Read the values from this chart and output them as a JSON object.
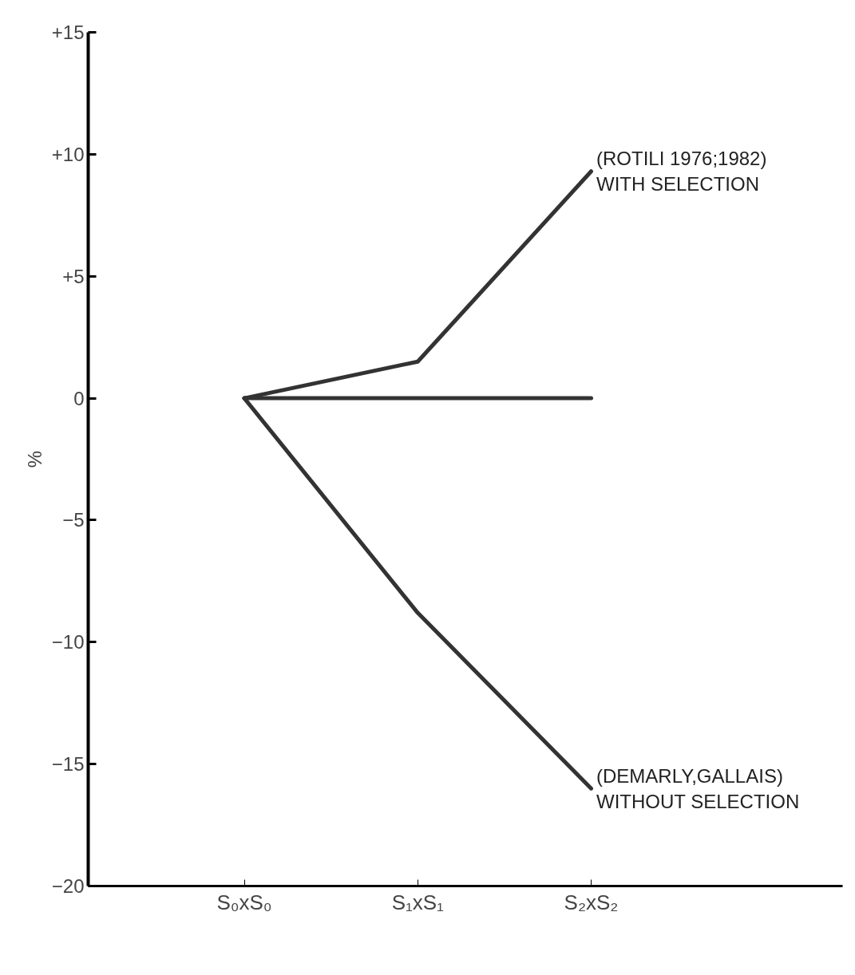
{
  "chart_data": {
    "type": "line",
    "ylabel": "%",
    "categories": [
      "S₀xS₀",
      "S₁xS₁",
      "S₂xS₂"
    ],
    "series": [
      {
        "color": "#333333",
        "values": [
          0,
          1.5,
          9.3
        ]
      },
      {
        "color": "#333333",
        "values": [
          0,
          0,
          0
        ]
      },
      {
        "color": "#333333",
        "values": [
          0,
          -8.8,
          -16
        ]
      }
    ],
    "ylim": [
      -20,
      15
    ],
    "yticks": [
      {
        "value": 15,
        "label": "+15"
      },
      {
        "value": 10,
        "label": "+10"
      },
      {
        "value": 5,
        "label": "+5"
      },
      0,
      -5,
      -10,
      -15,
      -20
    ],
    "grid": false,
    "marker": "none",
    "line_style": "solid",
    "annotations": [
      {
        "text": "(ROTILI 1976;1982)\nWITH SELECTION",
        "x": "S₂xS₂",
        "y": 9.3
      },
      {
        "text": "(DEMARLY,GALLAIS)\nWITHOUT SELECTION",
        "x": "S₂xS₂",
        "y": -16
      }
    ]
  }
}
